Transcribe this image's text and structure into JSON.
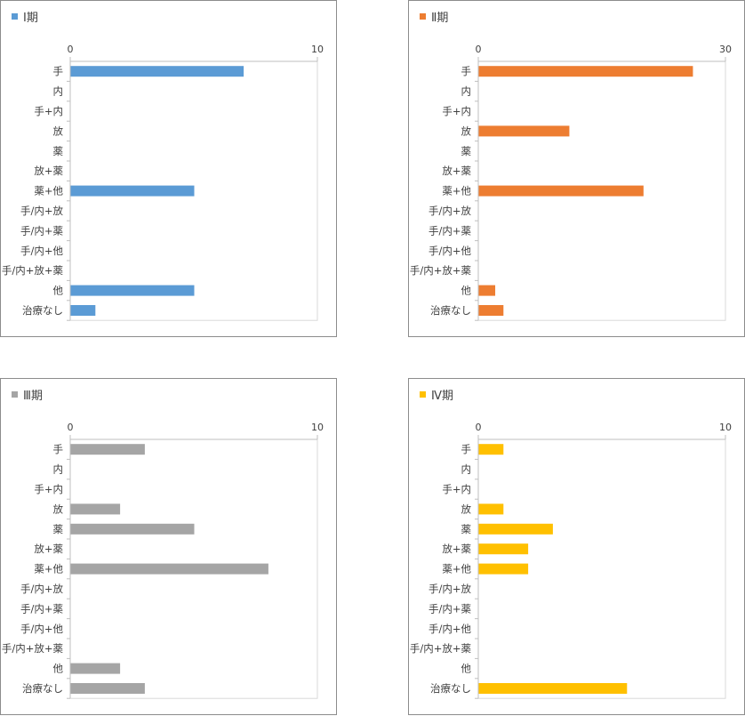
{
  "chart_data": [
    {
      "type": "bar",
      "orientation": "horizontal",
      "legend_label": "Ⅰ期",
      "color": "#5b9bd5",
      "categories": [
        "手",
        "内",
        "手+内",
        "放",
        "薬",
        "放+薬",
        "薬+他",
        "手/内+放",
        "手/内+薬",
        "手/内+他",
        "手/内+放+薬",
        "他",
        "治療なし"
      ],
      "values": [
        7,
        0,
        0,
        0,
        0,
        0,
        5,
        0,
        0,
        0,
        0,
        5,
        1
      ],
      "xlim": [
        0,
        10
      ],
      "ticks": [
        "0",
        "10"
      ]
    },
    {
      "type": "bar",
      "orientation": "horizontal",
      "legend_label": "Ⅱ期",
      "color": "#ed7d31",
      "categories": [
        "手",
        "内",
        "手+内",
        "放",
        "薬",
        "放+薬",
        "薬+他",
        "手/内+放",
        "手/内+薬",
        "手/内+他",
        "手/内+放+薬",
        "他",
        "治療なし"
      ],
      "values": [
        26,
        0,
        0,
        11,
        0,
        0,
        20,
        0,
        0,
        0,
        0,
        2,
        3
      ],
      "xlim": [
        0,
        30
      ],
      "ticks": [
        "0",
        "30"
      ]
    },
    {
      "type": "bar",
      "orientation": "horizontal",
      "legend_label": "Ⅲ期",
      "color": "#a5a5a5",
      "categories": [
        "手",
        "内",
        "手+内",
        "放",
        "薬",
        "放+薬",
        "薬+他",
        "手/内+放",
        "手/内+薬",
        "手/内+他",
        "手/内+放+薬",
        "他",
        "治療なし"
      ],
      "values": [
        3,
        0,
        0,
        2,
        5,
        0,
        8,
        0,
        0,
        0,
        0,
        2,
        3
      ],
      "xlim": [
        0,
        10
      ],
      "ticks": [
        "0",
        "10"
      ]
    },
    {
      "type": "bar",
      "orientation": "horizontal",
      "legend_label": "Ⅳ期",
      "color": "#ffc000",
      "categories": [
        "手",
        "内",
        "手+内",
        "放",
        "薬",
        "放+薬",
        "薬+他",
        "手/内+放",
        "手/内+薬",
        "手/内+他",
        "手/内+放+薬",
        "他",
        "治療なし"
      ],
      "values": [
        1,
        0,
        0,
        1,
        3,
        2,
        2,
        0,
        0,
        0,
        0,
        0,
        6
      ],
      "xlim": [
        0,
        10
      ],
      "ticks": [
        "0",
        "10"
      ]
    }
  ]
}
